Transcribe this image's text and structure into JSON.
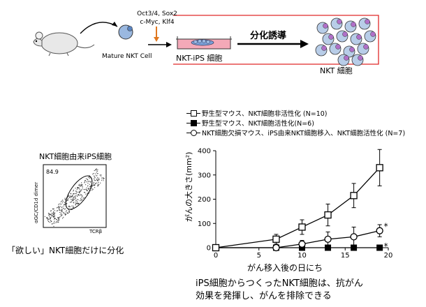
{
  "scheme": {
    "mature_cell_label": "Mature NKT Cell",
    "factors_line1": "Oct3/4, Sox2",
    "factors_line2": "c-Myc, Klf4",
    "ips_label": "NKT-iPS 細胞",
    "differentiation_label": "分化誘導",
    "nkt_label": "NKT 細胞"
  },
  "flow": {
    "title": "NKT細胞由来iPS細胞",
    "gate_value": "84.9",
    "ylabel": "αGC/CD1d dimer",
    "xlabel": "TCRβ",
    "caption": "「欲しい」NKT細胞だけに分化"
  },
  "conclusion": {
    "line1": "iPS細胞からつくったNKT細胞は、抗がん",
    "line2": "効果を発揮し、がんを排除できる"
  },
  "chart_data": {
    "type": "line",
    "xlabel": "がん移入後の日にち",
    "ylabel": "がんの大きさ(mm²)",
    "xlim": [
      0,
      20
    ],
    "ylim": [
      0,
      400
    ],
    "xticks": [
      0,
      5,
      10,
      15,
      20
    ],
    "yticks": [
      0,
      100,
      200,
      300,
      400
    ],
    "legend_position": "top",
    "series": [
      {
        "name": "野生型マウス、NKT細胞非活性化 (N=10)",
        "marker": "open-square",
        "x": [
          0,
          7,
          10,
          13,
          16,
          19
        ],
        "y": [
          0,
          35,
          85,
          135,
          215,
          330
        ],
        "err": [
          0,
          20,
          30,
          45,
          50,
          75
        ]
      },
      {
        "name": "野生型マウス、NKT細胞活性化(N=6)",
        "marker": "filled-square",
        "x": [
          0,
          7,
          10,
          13,
          16,
          19
        ],
        "y": [
          0,
          0,
          0,
          0,
          0,
          0
        ],
        "err": [
          0,
          0,
          0,
          0,
          0,
          0
        ]
      },
      {
        "name": "NKT細胞欠損マウス、iPS由来NKT細胞移入、NKT細胞活性化 (N=7)",
        "marker": "open-circle",
        "x": [
          0,
          7,
          10,
          13,
          16,
          19
        ],
        "y": [
          0,
          0,
          15,
          35,
          45,
          70
        ],
        "err": [
          0,
          5,
          15,
          30,
          40,
          25
        ]
      }
    ],
    "annotations": [
      "*",
      "*"
    ]
  }
}
